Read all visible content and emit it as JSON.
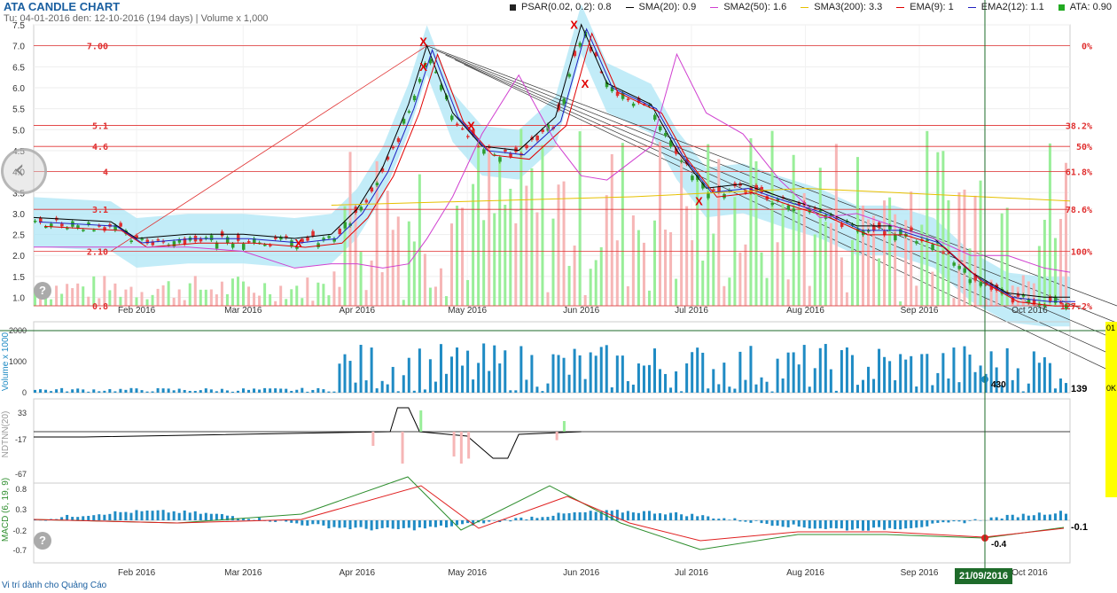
{
  "header": {
    "title": "ATA CANDLE CHART",
    "subtitle": "Tu: 04-01-2016 den: 12-10-2016 (194 days) | Volume x 1,000"
  },
  "legend": [
    {
      "label": "PSAR(0.02, 0.2): 0.8",
      "color": "#222222",
      "kind": "square"
    },
    {
      "label": "SMA(20): 0.9",
      "color": "#000000",
      "kind": "line"
    },
    {
      "label": "SMA2(50): 1.6",
      "color": "#d040d0",
      "kind": "line"
    },
    {
      "label": "SMA3(200): 3.3",
      "color": "#e6c000",
      "kind": "line"
    },
    {
      "label": "EMA(9): 1",
      "color": "#e00000",
      "kind": "line"
    },
    {
      "label": "EMA2(12): 1.1",
      "color": "#2020c0",
      "kind": "line"
    },
    {
      "label": "ATA: 0.90",
      "color": "#22aa22",
      "kind": "square"
    }
  ],
  "colors": {
    "up": "#2e9e2e",
    "down": "#e03030",
    "volume": "#1f8bc4",
    "band": "#aee6f5",
    "fib": "#e03030",
    "cursor": "#1e6b2a",
    "vol_bg_up": "#99ee99",
    "vol_bg_down": "#f6b6b6"
  },
  "icons": {
    "nav": "chevron-left-icon",
    "help": "question-icon"
  },
  "ad_text": "Vi trí dành cho Quảng Cáo",
  "cursor_date": "21/09/2016",
  "panel_labels": {
    "volume": "Volume x 1000",
    "ndtnn": "NDTNN(20)",
    "macd": "MACD (6, 19, 9)"
  },
  "right_labels": {
    "volume": "139",
    "volume_cursor": "430",
    "macd_right": "-0.1",
    "macd_cursor": "-0.4"
  },
  "yellow_panel": [
    "01",
    "0K"
  ],
  "chart_data": {
    "type": "candlestick",
    "title": "ATA CANDLE CHART",
    "y_ticks": [
      "1.0",
      "1.5",
      "2.0",
      "2.5",
      "3.0",
      "3.5",
      "4.0",
      "4.5",
      "5.0",
      "5.5",
      "6.0",
      "6.5",
      "7.0",
      "7.5"
    ],
    "ylim": [
      0.8,
      7.5
    ],
    "x_ticks": [
      "Feb 2016",
      "Mar 2016",
      "Apr 2016",
      "May 2016",
      "Jun 2016",
      "Jul 2016",
      "Aug 2016",
      "Sep 2016",
      "Oct 2016"
    ],
    "fib_levels": [
      {
        "price": 7.0,
        "left": "7.00",
        "right": "0%"
      },
      {
        "price": 5.1,
        "left": "5.1",
        "right": "38.2%"
      },
      {
        "price": 4.6,
        "left": "4.6",
        "right": "50%"
      },
      {
        "price": 4.0,
        "left": "4",
        "right": "61.8%"
      },
      {
        "price": 3.1,
        "left": "3.1",
        "right": "78.6%"
      },
      {
        "price": 2.1,
        "left": "2.10",
        "right": "100%"
      },
      {
        "price": 0.8,
        "left": "0.8",
        "right": "127.2%"
      }
    ],
    "price_series": [
      {
        "date": "2016-01-04",
        "close": 2.8
      },
      {
        "date": "2016-01-25",
        "close": 2.7
      },
      {
        "date": "2016-02-01",
        "close": 2.3
      },
      {
        "date": "2016-02-15",
        "close": 2.4
      },
      {
        "date": "2016-03-01",
        "close": 2.4
      },
      {
        "date": "2016-03-15",
        "close": 2.3
      },
      {
        "date": "2016-03-25",
        "close": 2.4
      },
      {
        "date": "2016-04-01",
        "close": 3.0
      },
      {
        "date": "2016-04-08",
        "close": 4.0
      },
      {
        "date": "2016-04-15",
        "close": 5.5
      },
      {
        "date": "2016-04-20",
        "close": 6.9
      },
      {
        "date": "2016-04-27",
        "close": 5.3
      },
      {
        "date": "2016-05-05",
        "close": 4.5
      },
      {
        "date": "2016-05-15",
        "close": 4.4
      },
      {
        "date": "2016-05-25",
        "close": 5.2
      },
      {
        "date": "2016-06-01",
        "close": 7.4
      },
      {
        "date": "2016-06-08",
        "close": 6.0
      },
      {
        "date": "2016-06-20",
        "close": 5.5
      },
      {
        "date": "2016-06-27",
        "close": 4.4
      },
      {
        "date": "2016-07-05",
        "close": 3.5
      },
      {
        "date": "2016-07-15",
        "close": 3.6
      },
      {
        "date": "2016-07-25",
        "close": 3.3
      },
      {
        "date": "2016-08-05",
        "close": 3.0
      },
      {
        "date": "2016-08-15",
        "close": 2.6
      },
      {
        "date": "2016-08-25",
        "close": 2.6
      },
      {
        "date": "2016-09-05",
        "close": 2.3
      },
      {
        "date": "2016-09-15",
        "close": 1.5
      },
      {
        "date": "2016-09-25",
        "close": 1.0
      },
      {
        "date": "2016-10-05",
        "close": 0.9
      },
      {
        "date": "2016-10-12",
        "close": 0.9
      }
    ],
    "volume_axis": {
      "ticks": [
        "0",
        "1000",
        "2000"
      ],
      "ylim": [
        0,
        2000
      ]
    },
    "ndtnn_axis": {
      "ticks": [
        "33",
        "-17",
        "-67"
      ]
    },
    "macd_axis": {
      "ticks": [
        "0.8",
        "0.3",
        "-0.2",
        "-0.7"
      ]
    }
  }
}
